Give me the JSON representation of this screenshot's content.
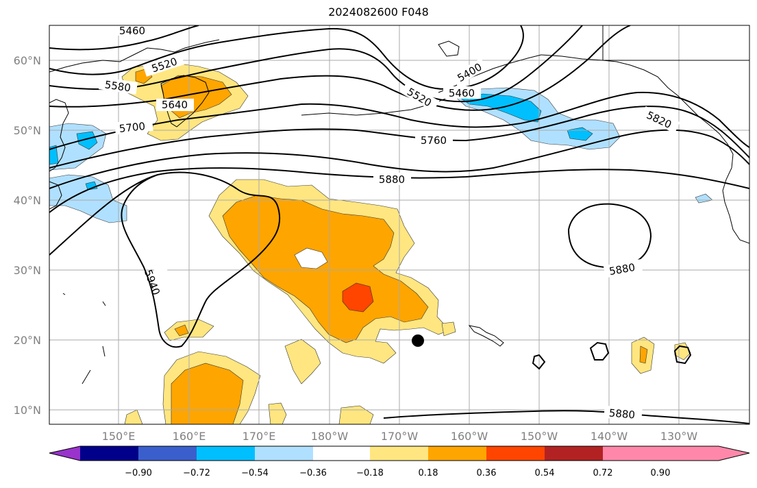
{
  "title": "2024082600 F048",
  "map": {
    "lat_labels": [
      "60°N",
      "50°N",
      "40°N",
      "30°N",
      "20°N",
      "10°N"
    ],
    "lon_labels": [
      "150°E",
      "160°E",
      "170°E",
      "180°W",
      "170°W",
      "160°W",
      "150°W",
      "140°W",
      "130°W"
    ],
    "contour_labels": [
      "5460",
      "5520",
      "5580",
      "5640",
      "5700",
      "5520",
      "5400",
      "5460",
      "5760",
      "5820",
      "5880",
      "5940",
      "5880",
      "5880"
    ],
    "marker": "storm-center-dot"
  },
  "colorbar": {
    "ticks": [
      "−0.90",
      "−0.72",
      "−0.54",
      "−0.36",
      "−0.18",
      "0.18",
      "0.36",
      "0.54",
      "0.72",
      "0.90"
    ],
    "colors": [
      "#9933cc",
      "#00008b",
      "#3a5fcd",
      "#00bfff",
      "#b0e0ff",
      "#ffffff",
      "#ffe680",
      "#ffa500",
      "#ff4500",
      "#b22222",
      "#ff88aa",
      "#ff88aa"
    ]
  }
}
